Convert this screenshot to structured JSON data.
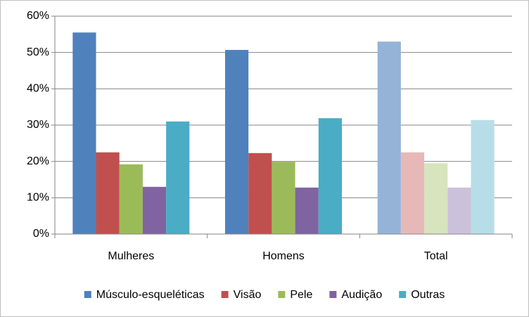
{
  "chart_data": {
    "type": "bar",
    "categories": [
      "Mulheres",
      "Homens",
      "Total"
    ],
    "series": [
      {
        "name": "Músculo-esqueléticas",
        "color": "#4f81bd",
        "colors": [
          "#4f81bd",
          "#4f81bd",
          "#95b3d7"
        ],
        "values": [
          55.5,
          50.7,
          53.0
        ]
      },
      {
        "name": "Visão",
        "color": "#c0504d",
        "colors": [
          "#c0504d",
          "#c0504d",
          "#e6b9b8"
        ],
        "values": [
          22.5,
          22.3,
          22.5
        ]
      },
      {
        "name": "Pele",
        "color": "#9bbb59",
        "colors": [
          "#9bbb59",
          "#9bbb59",
          "#d7e4bd"
        ],
        "values": [
          19.2,
          19.9,
          19.5
        ]
      },
      {
        "name": "Audição",
        "color": "#8064a2",
        "colors": [
          "#8064a2",
          "#8064a2",
          "#ccc1da"
        ],
        "values": [
          13.0,
          12.8,
          12.8
        ]
      },
      {
        "name": "Outras",
        "color": "#4bacc6",
        "colors": [
          "#4bacc6",
          "#4bacc6",
          "#b7dee8"
        ],
        "values": [
          31.0,
          31.9,
          31.4
        ]
      }
    ],
    "ylim": [
      0,
      60
    ],
    "yticks": [
      {
        "value": 0,
        "label": "0%"
      },
      {
        "value": 10,
        "label": "10%"
      },
      {
        "value": 20,
        "label": "20%"
      },
      {
        "value": 30,
        "label": "30%"
      },
      {
        "value": 40,
        "label": "40%"
      },
      {
        "value": 50,
        "label": "50%"
      },
      {
        "value": 60,
        "label": "60%"
      }
    ],
    "grid": true,
    "legend": "bottom"
  }
}
